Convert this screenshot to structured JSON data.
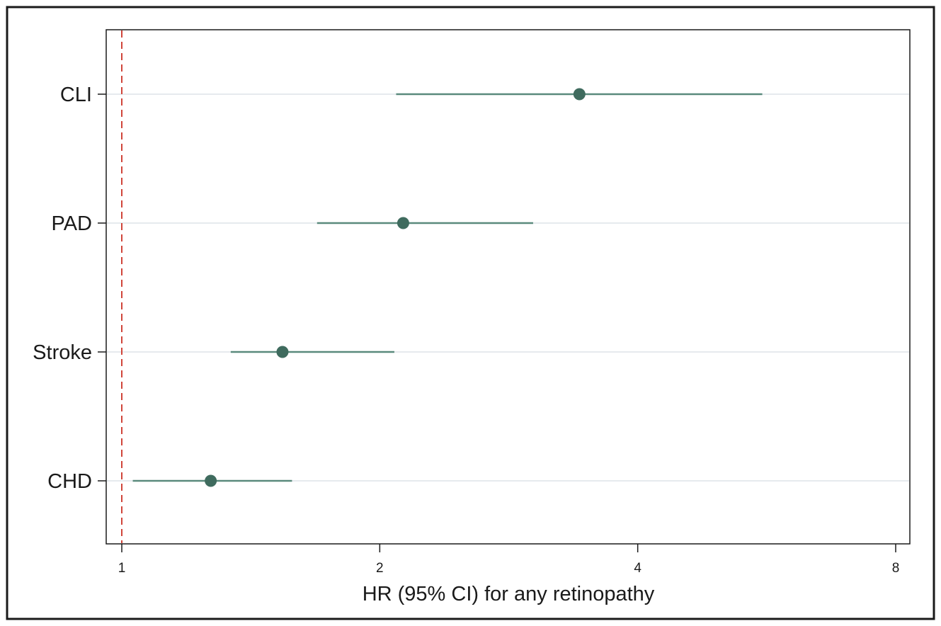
{
  "chart_data": {
    "type": "forest",
    "title": "",
    "xlabel": "HR (95% CI) for any retinopathy",
    "ylabel": "",
    "x_scale": "log2",
    "xlim": [
      0.97,
      8.0
    ],
    "xticks": [
      1,
      2,
      4,
      8
    ],
    "xtick_labels": [
      "1",
      "2",
      "4",
      "8"
    ],
    "reference_line": 1,
    "categories": [
      "CLI",
      "PAD",
      "Stroke",
      "CHD"
    ],
    "series": [
      {
        "estimate": [
          3.42,
          2.13,
          1.54,
          1.27
        ],
        "ci_low": [
          2.09,
          1.69,
          1.34,
          1.03
        ],
        "ci_high": [
          5.59,
          3.02,
          2.08,
          1.58
        ]
      }
    ],
    "grid": true,
    "legend": "none",
    "colors": {
      "marker": "#3f6b5e",
      "ci_line": "#5a8a7c",
      "reference_line": "#d0453a",
      "grid": "#e6eaee",
      "axis": "#1a1a1a",
      "frame": "#1a1a1a",
      "plot_background": "#ffffff",
      "figure_background": "#ffffff"
    }
  }
}
